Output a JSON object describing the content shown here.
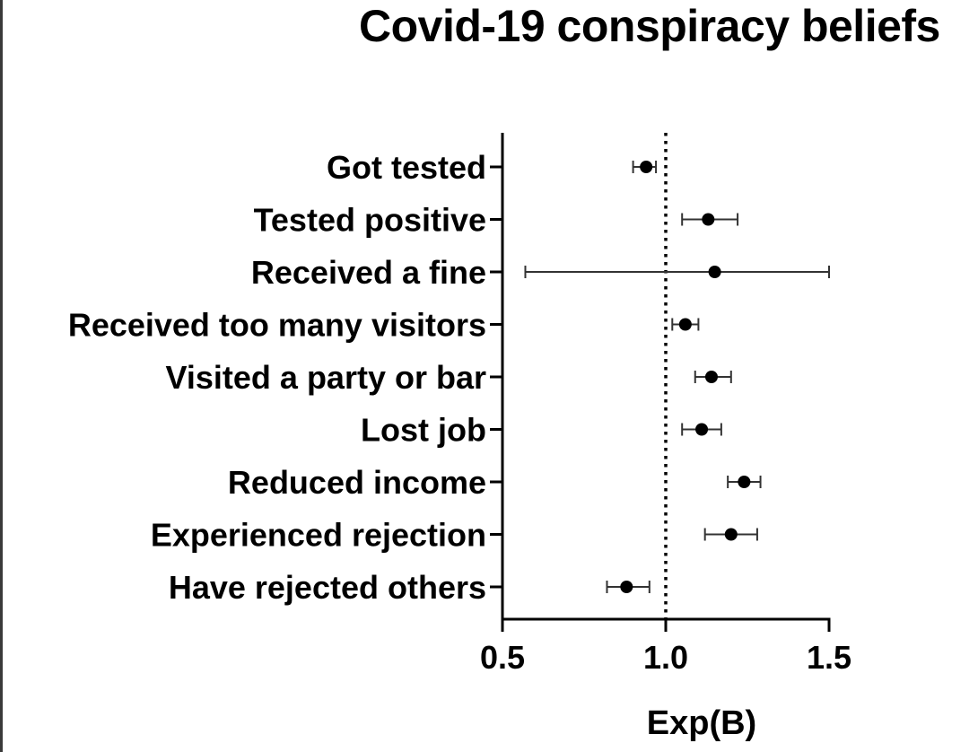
{
  "chart_data": {
    "type": "forest",
    "title": "Covid-19 conspiracy beliefs",
    "xlabel": "Exp(B)",
    "ylabel": "",
    "xlim": [
      0.5,
      1.5
    ],
    "xticks": [
      0.5,
      1.0,
      1.5
    ],
    "xtick_labels": [
      "0.5",
      "1.0",
      "1.5"
    ],
    "reference_line": 1.0,
    "reference_line_style": "dotted",
    "grid": false,
    "legend": "none",
    "series": [
      {
        "categories": [
          "Got tested",
          "Tested positive",
          "Received a fine",
          "Received too many visitors",
          "Visited a party or bar",
          "Lost job",
          "Reduced income",
          "Experienced rejection",
          "Have rejected others"
        ],
        "estimates": [
          0.94,
          1.13,
          1.15,
          1.06,
          1.14,
          1.11,
          1.24,
          1.2,
          0.88
        ],
        "ci_lower": [
          0.9,
          1.05,
          0.57,
          1.02,
          1.09,
          1.05,
          1.19,
          1.12,
          0.82
        ],
        "ci_upper": [
          0.97,
          1.22,
          1.5,
          1.1,
          1.2,
          1.17,
          1.29,
          1.28,
          0.95
        ]
      }
    ],
    "colors": {
      "marker": "#000000",
      "axis": "#000000",
      "ci": "#333333"
    }
  }
}
